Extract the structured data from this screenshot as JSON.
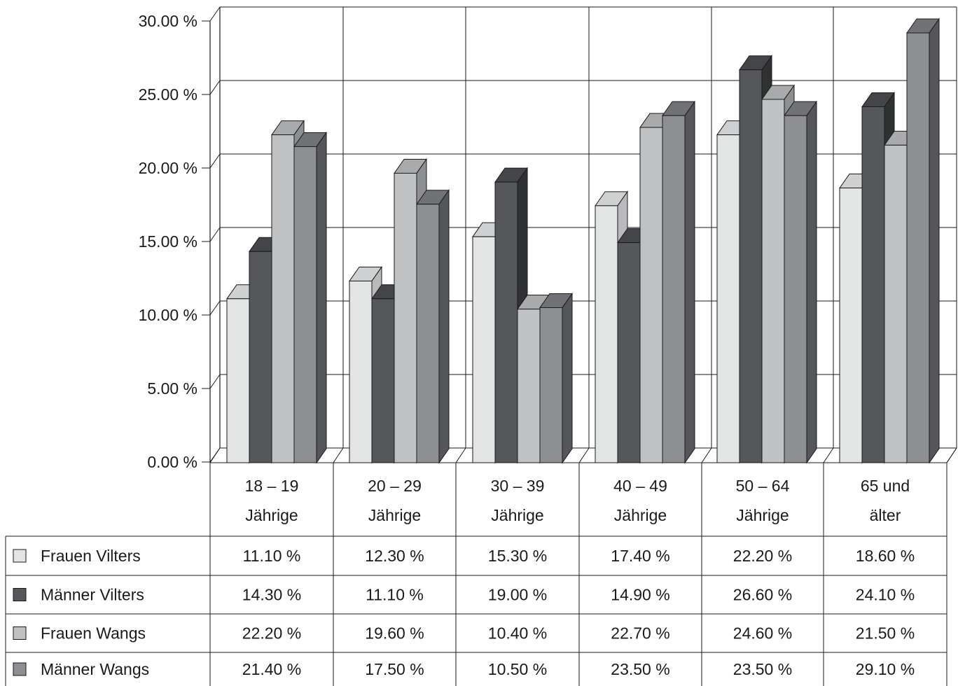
{
  "chart_data": {
    "type": "bar",
    "three_d": true,
    "categories": [
      [
        "18 – 19",
        "Jährige"
      ],
      [
        "20 – 29",
        "Jährige"
      ],
      [
        "30 – 39",
        "Jährige"
      ],
      [
        "40 – 49",
        "Jährige"
      ],
      [
        "50 – 64",
        "Jährige"
      ],
      [
        "65 und",
        "älter"
      ]
    ],
    "series": [
      {
        "name": "Frauen Vilters",
        "color": "#e3e4e4",
        "side": "#b9babb",
        "top": "#cfd0d1",
        "values": [
          11.1,
          12.3,
          15.3,
          17.4,
          22.2,
          18.6
        ],
        "labels": [
          "11.10 %",
          "12.30 %",
          "15.30 %",
          "17.40 %",
          "22.20 %",
          "18.60 %"
        ]
      },
      {
        "name": "Männer Vilters",
        "color": "#56575a",
        "side": "#303133",
        "top": "#444548",
        "values": [
          14.3,
          11.1,
          19.0,
          14.9,
          26.6,
          24.1
        ],
        "labels": [
          "14.30 %",
          "11.10 %",
          "19.00 %",
          "14.90 %",
          "26.60 %",
          "24.10 %"
        ]
      },
      {
        "name": "Frauen Wangs",
        "color": "#c0c1c3",
        "side": "#8e8f91",
        "top": "#a9aaac",
        "values": [
          22.2,
          19.6,
          10.4,
          22.7,
          24.6,
          21.5
        ],
        "labels": [
          "22.20 %",
          "19.60 %",
          "10.40 %",
          "22.70 %",
          "24.60 %",
          "21.50 %"
        ]
      },
      {
        "name": "Männer Wangs",
        "color": "#8e8f92",
        "side": "#555659",
        "top": "#717275",
        "values": [
          21.4,
          17.5,
          10.5,
          23.5,
          23.5,
          29.1
        ],
        "labels": [
          "21.40 %",
          "17.50 %",
          "10.50 %",
          "23.50 %",
          "23.50 %",
          "29.10 %"
        ]
      }
    ],
    "yticks": [
      "0.00 %",
      "5.00 %",
      "10.00 %",
      "15.00 %",
      "20.00 %",
      "25.00 %",
      "30.00 %"
    ],
    "ylim": [
      0,
      30
    ],
    "grid": true,
    "legend": "data-table-left"
  }
}
